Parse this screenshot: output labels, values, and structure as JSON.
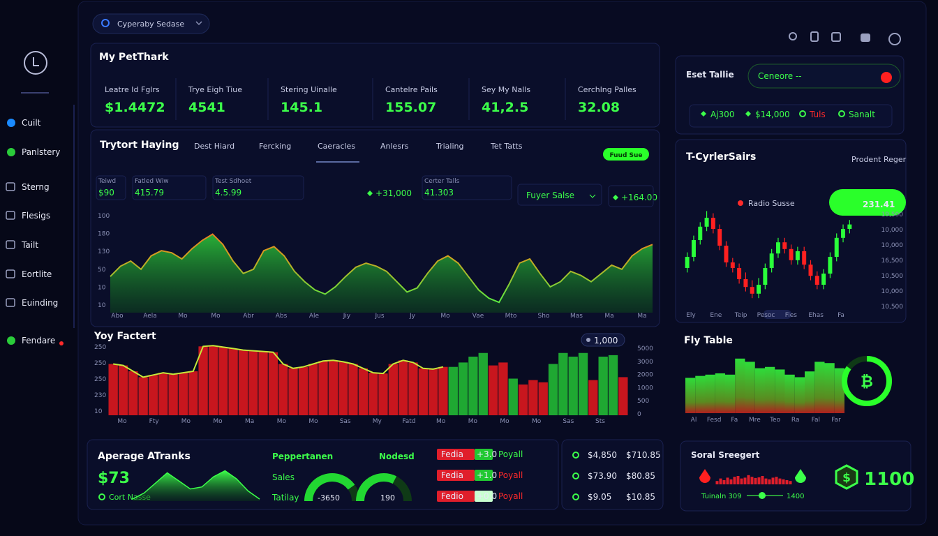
{
  "header": {
    "selector": "Cyperaby Sedase"
  },
  "sidebar": {
    "items": [
      "Cuilt",
      "Panlstery",
      "Sterng",
      "Flesigs",
      "Tailt",
      "Eortlite",
      "Euinding",
      "Fendare"
    ]
  },
  "summary": {
    "title": "My PetThark",
    "stats": [
      {
        "label": "Leatre Id Fglrs",
        "value": "$1.4472"
      },
      {
        "label": "Trye Eigh Tiue",
        "value": "4541"
      },
      {
        "label": "Stering Uinalle",
        "value": "145.1"
      },
      {
        "label": "Cantelre Pails",
        "value": "155.07"
      },
      {
        "label": "Sey My Nalls",
        "value": "41,2.5"
      },
      {
        "label": "Cerchlng Palles",
        "value": "32.08"
      }
    ]
  },
  "market": {
    "title": "Trytort Haying",
    "tabs": [
      "Dest Hiard",
      "Fercking",
      "Caeracles",
      "Anlesrs",
      "Trialing",
      "Tet Tatts"
    ],
    "button": "Fuud Sue",
    "stats": [
      {
        "label": "Teiwd",
        "value": "$90"
      },
      {
        "label": "Fatled Wiw",
        "value": "415.79"
      },
      {
        "label": "Test Sdhoet",
        "value": "4.5.99"
      },
      {
        "label": "Certer Talls",
        "value": "41.303"
      }
    ],
    "changes": [
      "+31,000",
      "+164.00"
    ],
    "dropdown": "Fuyer Salse",
    "chart": {
      "type": "area",
      "values": [
        35,
        45,
        50,
        42,
        55,
        60,
        58,
        52,
        62,
        70,
        76,
        66,
        50,
        38,
        42,
        60,
        64,
        55,
        40,
        30,
        22,
        18,
        25,
        35,
        44,
        48,
        45,
        40,
        30,
        20,
        24,
        38,
        50,
        55,
        48,
        35,
        22,
        14,
        10,
        28,
        48,
        52,
        38,
        25,
        30,
        40,
        36,
        30,
        38,
        46,
        42,
        55,
        62,
        66
      ],
      "ylim": [
        0,
        100
      ],
      "y_labels": [
        "100",
        "180",
        "130",
        "50",
        "10",
        "10"
      ],
      "x_labels": [
        "Abo",
        "Aela",
        "Mo",
        "Mo",
        "Abr",
        "Abs",
        "Ale",
        "Jiy",
        "Jus",
        "Jy",
        "Mo",
        "Vae",
        "Mto",
        "Sho",
        "Mas",
        "Ma",
        "Ma"
      ]
    }
  },
  "factor": {
    "title": "Yoy Factert",
    "legend": "1,000",
    "type": "bar",
    "values": [
      70,
      68,
      60,
      52,
      55,
      58,
      56,
      58,
      60,
      94,
      95,
      93,
      91,
      89,
      88,
      87,
      86,
      70,
      64,
      66,
      70,
      74,
      75,
      73,
      70,
      64,
      58,
      57,
      70,
      75,
      72,
      64,
      63,
      66,
      66,
      72,
      80,
      85,
      68,
      72,
      50,
      42,
      48,
      45,
      70,
      85,
      80,
      85,
      48,
      80,
      82,
      52
    ],
    "colors": [
      "#c8161e",
      "#c8161e",
      "#c8161e",
      "#c8161e",
      "#c8161e",
      "#c8161e",
      "#c8161e",
      "#c8161e",
      "#c8161e",
      "#c8161e",
      "#c8161e",
      "#c8161e",
      "#c8161e",
      "#c8161e",
      "#c8161e",
      "#c8161e",
      "#c8161e",
      "#c8161e",
      "#c8161e",
      "#c8161e",
      "#c8161e",
      "#c8161e",
      "#c8161e",
      "#c8161e",
      "#c8161e",
      "#c8161e",
      "#c8161e",
      "#c8161e",
      "#c8161e",
      "#c8161e",
      "#c8161e",
      "#c8161e",
      "#c8161e",
      "#c8161e",
      "#1fa832",
      "#1fa832",
      "#1fa832",
      "#1fa832",
      "#c8161e",
      "#c8161e",
      "#1fa832",
      "#c8161e",
      "#c8161e",
      "#c8161e",
      "#1fa832",
      "#1fa832",
      "#1fa832",
      "#1fa832",
      "#c8161e",
      "#1fa832",
      "#1fa832",
      "#c8161e"
    ],
    "line_color": "#c6e83a",
    "ylim": [
      0,
      100
    ],
    "y_labels_left": [
      "250",
      "250",
      "250",
      "230",
      "10"
    ],
    "y_labels_right": [
      "5000",
      "3000",
      "2000",
      "1000",
      "500",
      "0"
    ],
    "x_labels": [
      "Mo",
      "Fty",
      "Mo",
      "Mo",
      "Ma",
      "Mo",
      "Mo",
      "Sas",
      "My",
      "Fatd",
      "Mo",
      "Mo",
      "Mo",
      "Mo",
      "Sas",
      "Sts"
    ]
  },
  "averages": {
    "title": "Aperage ATranks",
    "value": "$73",
    "note": "Cort Nasse",
    "type": "area",
    "values": [
      5,
      20,
      45,
      70,
      50,
      30,
      35,
      60,
      75,
      55,
      25,
      5
    ],
    "ylim": [
      0,
      100
    ]
  },
  "metrics": {
    "labels": [
      "Peppertanen",
      "Sales",
      "Tatilay"
    ],
    "total": "-3650",
    "gauge_title": "Nodesd",
    "gauge_value": "190",
    "gauges": [
      80,
      65
    ]
  },
  "payouts": [
    {
      "label": "Fedia",
      "badge": "+3.0",
      "status": "Poyall"
    },
    {
      "label": "Fedia",
      "badge": "+1.0",
      "status": "Poyall"
    },
    {
      "label": "Fedio",
      "badge": "+0.0",
      "status": "Poyall"
    }
  ],
  "prices": [
    [
      "$4,850",
      "$710.85"
    ],
    [
      "$73.90",
      "$80.85"
    ],
    [
      "$9.05",
      "$10.85"
    ]
  ],
  "filter": {
    "title": "Eset Tallie",
    "search": "Ceneore --",
    "chips": [
      "Aj300",
      "$14,000",
      "Tuls",
      "Sanalt"
    ]
  },
  "candles": {
    "type": "candlestick",
    "title": "T-CyrlerSairs",
    "subtitle": "Prodent Reger",
    "badge": "231.41",
    "legend": "Radio Susse",
    "open": [
      35,
      45,
      60,
      72,
      80,
      70,
      55,
      40,
      35,
      25,
      18,
      12,
      20,
      35,
      48,
      58,
      52,
      42,
      50,
      38,
      28,
      20,
      30,
      45,
      62,
      70
    ],
    "high": [
      49,
      64,
      76,
      86,
      84,
      74,
      59,
      44,
      39,
      31,
      24,
      26,
      39,
      52,
      62,
      62,
      56,
      54,
      54,
      42,
      32,
      34,
      49,
      66,
      74,
      78
    ],
    "low": [
      31,
      41,
      56,
      68,
      66,
      51,
      36,
      31,
      21,
      14,
      8,
      8,
      16,
      31,
      44,
      48,
      38,
      38,
      34,
      24,
      16,
      16,
      26,
      41,
      58,
      66
    ],
    "close": [
      45,
      60,
      72,
      80,
      70,
      55,
      40,
      35,
      25,
      18,
      12,
      20,
      35,
      48,
      58,
      52,
      42,
      50,
      38,
      28,
      20,
      30,
      45,
      62,
      70,
      74
    ],
    "ylim": [
      0,
      100
    ],
    "y_labels": [
      "19,500",
      "10,000",
      "10,000",
      "16,500",
      "10,500",
      "10,000",
      "10,500"
    ],
    "x_labels": [
      "Ely",
      "Ene",
      "Teip",
      "Pesoc",
      "Fies",
      "Ehas",
      "Fa"
    ]
  },
  "fly": {
    "type": "bar",
    "title": "Fly Table",
    "values": [
      55,
      58,
      60,
      62,
      60,
      85,
      80,
      70,
      72,
      68,
      60,
      56,
      65,
      80,
      78,
      70
    ],
    "ylim": [
      0,
      100
    ],
    "x_labels": [
      "Al",
      "Fesd",
      "Fa",
      "Mre",
      "Teo",
      "Ra",
      "Fal",
      "Far"
    ]
  },
  "donut": {
    "symbol": "₿",
    "value": 85
  },
  "sweep": {
    "type": "bar",
    "title": "Soral Sreegert",
    "values": [
      20,
      35,
      25,
      40,
      30,
      45,
      50,
      35,
      40,
      55,
      45,
      38,
      42,
      50,
      35,
      30,
      40,
      45,
      35,
      30,
      25,
      20
    ],
    "ylim": [
      0,
      100
    ],
    "currency": "$",
    "amount": "1100",
    "note": "Tuinaln 309",
    "end": "1400"
  }
}
